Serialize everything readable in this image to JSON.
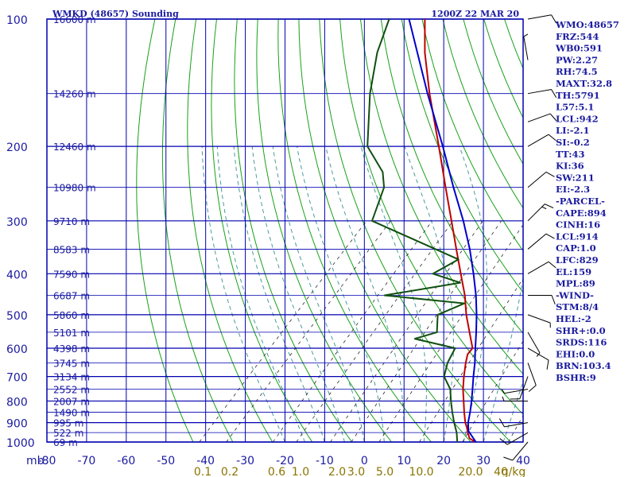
{
  "header": {
    "station_title": "WMKD (48657) Sounding",
    "valid_time": "1200Z 22 MAR 20"
  },
  "stats_panel": [
    "WMO:48657",
    "FRZ:544",
    "WB0:591",
    "PW:2.27",
    "RH:74.5",
    "MAXT:32.8",
    "TH:5791",
    "L57:5.1",
    "LCL:942",
    "LI:-2.1",
    "SI:-0.2",
    "TT:43",
    "KI:36",
    "SW:211",
    "EI:-2.3",
    "-PARCEL-",
    "CAPE:894",
    "CINH:16",
    "LCL:914",
    "CAP:1.0",
    "LFC:829",
    "EL:159",
    "MPL:89",
    "-WIND-",
    "STM:8/4",
    "HEL:-2",
    "SHR+:0.0",
    "SRDS:116",
    "EHI:0.0",
    "BRN:103.4",
    "BSHR:9"
  ],
  "colors": {
    "background": "#ffffff",
    "grid": "#0000b0",
    "axis_text": "#1a1aa0",
    "height_text": "#1a1aa0",
    "mixing_text": "#8a7400",
    "dry_adiabat": "#18a018",
    "moist_adiabat": "#4a9a9a",
    "mixing_ratio": "#2a2a2a",
    "temperature": "#c00000",
    "dewpoint": "#105010",
    "parcel": "#0000cc",
    "wind": "#000000"
  },
  "chart_data": {
    "type": "line",
    "chart_kind": "skew-T log-p sounding",
    "x_label_prefix": "mb",
    "xlim": [
      -80,
      40
    ],
    "x_unit": "degC",
    "x_ticks": [
      -80,
      -70,
      -60,
      -50,
      -40,
      -30,
      -20,
      -10,
      0,
      10,
      20,
      30,
      40
    ],
    "x_tick_labels": [
      "-80",
      "-70",
      "-60",
      "-50",
      "-40",
      "-30",
      "-20",
      "-10",
      "0",
      "10",
      "20",
      "30",
      "40"
    ],
    "pressure_range_mb": [
      100,
      1000
    ],
    "y_scale": "log",
    "y_ticks_mb": [
      100,
      200,
      300,
      400,
      500,
      600,
      700,
      800,
      900,
      1000
    ],
    "y_tick_labels": [
      "100",
      "200",
      "300",
      "400",
      "500",
      "600",
      "700",
      "800",
      "900",
      "1000"
    ],
    "height_labels": [
      {
        "p": 100,
        "label": "16600 m"
      },
      {
        "p": 150,
        "label": "14260 m"
      },
      {
        "p": 200,
        "label": "12460 m"
      },
      {
        "p": 250,
        "label": "10980 m"
      },
      {
        "p": 300,
        "label": "9710 m"
      },
      {
        "p": 350,
        "label": "8583 m"
      },
      {
        "p": 400,
        "label": "7590 m"
      },
      {
        "p": 450,
        "label": "6687 m"
      },
      {
        "p": 500,
        "label": "5860 m"
      },
      {
        "p": 550,
        "label": "5101 m"
      },
      {
        "p": 600,
        "label": "4398 m"
      },
      {
        "p": 650,
        "label": "3745 m"
      },
      {
        "p": 700,
        "label": "3134 m"
      },
      {
        "p": 750,
        "label": "2552 m"
      },
      {
        "p": 800,
        "label": "2007 m"
      },
      {
        "p": 850,
        "label": "1490 m"
      },
      {
        "p": 900,
        "label": "995 m"
      },
      {
        "p": 950,
        "label": "522 m"
      },
      {
        "p": 1000,
        "label": "69 m"
      }
    ],
    "mixing_ratio_labels": [
      "0.1",
      "0.2",
      "0.6",
      "1.0",
      "2.0",
      "3.0",
      "5.0",
      "10.0",
      "20.0",
      "40",
      "g/kg"
    ],
    "mixing_ratio_values": [
      0.1,
      0.2,
      0.6,
      1.0,
      2.0,
      3.0,
      5.0,
      10.0,
      20.0,
      40.0
    ],
    "dry_adiabats_K": [
      230,
      240,
      250,
      260,
      270,
      280,
      290,
      300,
      310,
      320,
      330,
      340,
      350,
      360,
      370,
      380,
      390,
      400,
      410,
      420,
      430,
      440,
      450,
      460,
      470,
      480,
      490,
      500
    ],
    "moist_adiabats_base_C": [
      -20,
      -15,
      -10,
      -5,
      0,
      5,
      10,
      15,
      20,
      25,
      30,
      35
    ],
    "series": [
      {
        "role": "temperature",
        "points": [
          {
            "p": 1004,
            "t": 28.4
          },
          {
            "p": 980,
            "t": 25.6
          },
          {
            "p": 950,
            "t": 23.8
          },
          {
            "p": 925,
            "t": 22.4
          },
          {
            "p": 900,
            "t": 20.8
          },
          {
            "p": 850,
            "t": 18.0
          },
          {
            "p": 800,
            "t": 15.2
          },
          {
            "p": 750,
            "t": 12.2
          },
          {
            "p": 700,
            "t": 9.4
          },
          {
            "p": 650,
            "t": 6.6
          },
          {
            "p": 620,
            "t": 5.0
          },
          {
            "p": 600,
            "t": 4.8
          },
          {
            "p": 550,
            "t": 0.2
          },
          {
            "p": 500,
            "t": -4.8
          },
          {
            "p": 450,
            "t": -9.8
          },
          {
            "p": 400,
            "t": -16.0
          },
          {
            "p": 350,
            "t": -23.0
          },
          {
            "p": 300,
            "t": -31.0
          },
          {
            "p": 250,
            "t": -40.5
          },
          {
            "p": 200,
            "t": -52.0
          },
          {
            "p": 150,
            "t": -67.0
          },
          {
            "p": 120,
            "t": -78.0
          },
          {
            "p": 100,
            "t": -86.0
          }
        ]
      },
      {
        "role": "dewpoint",
        "points": [
          {
            "p": 1004,
            "t": 23.6
          },
          {
            "p": 950,
            "t": 21.0
          },
          {
            "p": 900,
            "t": 18.0
          },
          {
            "p": 850,
            "t": 15.0
          },
          {
            "p": 800,
            "t": 12.0
          },
          {
            "p": 750,
            "t": 9.0
          },
          {
            "p": 700,
            "t": 4.4
          },
          {
            "p": 650,
            "t": 2.0
          },
          {
            "p": 600,
            "t": 0.4
          },
          {
            "p": 570,
            "t": -12.0
          },
          {
            "p": 550,
            "t": -8.0
          },
          {
            "p": 500,
            "t": -12.0
          },
          {
            "p": 470,
            "t": -8.0
          },
          {
            "p": 450,
            "t": -30.0
          },
          {
            "p": 420,
            "t": -14.0
          },
          {
            "p": 400,
            "t": -23.0
          },
          {
            "p": 370,
            "t": -20.0
          },
          {
            "p": 300,
            "t": -51.0
          },
          {
            "p": 250,
            "t": -56.0
          },
          {
            "p": 230,
            "t": -60.0
          },
          {
            "p": 200,
            "t": -70.0
          },
          {
            "p": 150,
            "t": -82.0
          },
          {
            "p": 120,
            "t": -90.0
          },
          {
            "p": 100,
            "t": -95.0
          }
        ]
      },
      {
        "role": "parcel",
        "points": [
          {
            "p": 1004,
            "t": 28.4
          },
          {
            "p": 942,
            "t": 23.6
          },
          {
            "p": 900,
            "t": 21.5
          },
          {
            "p": 850,
            "t": 19.5
          },
          {
            "p": 800,
            "t": 17.2
          },
          {
            "p": 750,
            "t": 14.6
          },
          {
            "p": 700,
            "t": 11.8
          },
          {
            "p": 650,
            "t": 8.9
          },
          {
            "p": 600,
            "t": 5.5
          },
          {
            "p": 550,
            "t": 1.9
          },
          {
            "p": 500,
            "t": -2.2
          },
          {
            "p": 450,
            "t": -7.0
          },
          {
            "p": 400,
            "t": -12.8
          },
          {
            "p": 350,
            "t": -19.6
          },
          {
            "p": 300,
            "t": -28.0
          },
          {
            "p": 250,
            "t": -38.5
          },
          {
            "p": 200,
            "t": -51.0
          },
          {
            "p": 150,
            "t": -67.5
          },
          {
            "p": 100,
            "t": -90.0
          }
        ]
      }
    ],
    "wind_barbs": [
      {
        "p": 100,
        "dir": 80,
        "spd": 10
      },
      {
        "p": 125,
        "dir": 350,
        "spd": 5
      },
      {
        "p": 150,
        "dir": 80,
        "spd": 10
      },
      {
        "p": 175,
        "dir": 70,
        "spd": 10
      },
      {
        "p": 200,
        "dir": 60,
        "spd": 10
      },
      {
        "p": 250,
        "dir": 50,
        "spd": 10
      },
      {
        "p": 300,
        "dir": 45,
        "spd": 15
      },
      {
        "p": 350,
        "dir": 50,
        "spd": 10
      },
      {
        "p": 400,
        "dir": 60,
        "spd": 10
      },
      {
        "p": 450,
        "dir": 90,
        "spd": 10
      },
      {
        "p": 500,
        "dir": 110,
        "spd": 5
      },
      {
        "p": 550,
        "dir": 150,
        "spd": 5
      },
      {
        "p": 600,
        "dir": 120,
        "spd": 10
      },
      {
        "p": 650,
        "dir": 160,
        "spd": 10
      },
      {
        "p": 700,
        "dir": 200,
        "spd": 10
      },
      {
        "p": 750,
        "dir": 260,
        "spd": 5
      },
      {
        "p": 800,
        "dir": 270,
        "spd": 5
      },
      {
        "p": 900,
        "dir": 260,
        "spd": 10
      },
      {
        "p": 950,
        "dir": 240,
        "spd": 10
      },
      {
        "p": 1000,
        "dir": 220,
        "spd": 10
      }
    ]
  }
}
